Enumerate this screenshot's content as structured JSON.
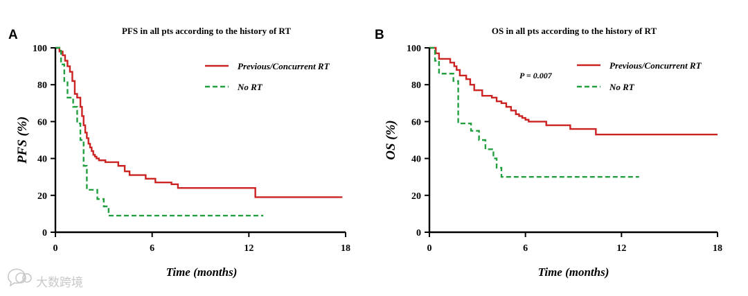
{
  "colors": {
    "rt": "#cc2222",
    "no_rt": "#22a040"
  },
  "watermark": {
    "text": "大数跨境",
    "icon": "wechat-like-icon"
  },
  "chart_data": [
    {
      "type": "line",
      "panel_letter": "A",
      "title": "PFS in all pts according to the history of RT",
      "xlabel": "Time (months)",
      "ylabel": "PFS (%)",
      "xlim": [
        0,
        18
      ],
      "ylim": [
        0,
        100
      ],
      "xticks": [
        0,
        6,
        12,
        18
      ],
      "yticks": [
        0,
        20,
        40,
        60,
        80,
        100
      ],
      "legend": {
        "position": "top-right"
      },
      "p_value": "",
      "series": [
        {
          "name": "Previous/Concurrent RT",
          "style": "solid",
          "color_key": "rt",
          "x": [
            0,
            0.25,
            0.45,
            0.6,
            0.75,
            0.9,
            1.05,
            1.2,
            1.35,
            1.55,
            1.65,
            1.75,
            1.85,
            1.95,
            2.05,
            2.15,
            2.25,
            2.35,
            2.45,
            2.55,
            2.7,
            2.9,
            3.1,
            3.5,
            3.9,
            4.3,
            4.6,
            5.0,
            5.6,
            6.2,
            7.2,
            7.6,
            9.5,
            12.4,
            17.8
          ],
          "y": [
            100,
            98,
            96,
            93,
            90,
            87,
            82,
            75,
            73,
            68,
            63,
            58,
            54,
            51,
            48,
            46,
            44,
            42,
            41,
            40,
            39,
            39,
            38,
            38,
            36,
            33,
            31,
            31,
            29,
            27,
            26,
            24,
            24,
            19,
            19
          ]
        },
        {
          "name": "No RT",
          "style": "dashed",
          "color_key": "no_rt",
          "x": [
            0,
            0.35,
            0.55,
            0.75,
            1.1,
            1.35,
            1.55,
            1.75,
            1.95,
            2.6,
            3.0,
            3.3,
            12.9
          ],
          "y": [
            100,
            91,
            82,
            73,
            68,
            59,
            50,
            36,
            23,
            18,
            14,
            9,
            9
          ]
        }
      ]
    },
    {
      "type": "line",
      "panel_letter": "B",
      "title": "OS in all pts according to the history of RT",
      "xlabel": "Time (months)",
      "ylabel": "OS (%)",
      "xlim": [
        0,
        18
      ],
      "ylim": [
        0,
        100
      ],
      "xticks": [
        0,
        6,
        12,
        18
      ],
      "yticks": [
        0,
        20,
        40,
        60,
        80,
        100
      ],
      "legend": {
        "position": "top-right"
      },
      "p_value": "P = 0.007",
      "series": [
        {
          "name": "Previous/Concurrent RT",
          "style": "solid",
          "color_key": "rt",
          "x": [
            0,
            0.4,
            0.6,
            1.3,
            1.55,
            1.7,
            1.9,
            2.3,
            2.55,
            2.8,
            3.3,
            3.9,
            4.2,
            4.5,
            4.8,
            5.1,
            5.4,
            5.6,
            5.8,
            6.0,
            6.2,
            7.1,
            7.3,
            8.8,
            10.4,
            18
          ],
          "y": [
            100,
            97,
            94,
            92,
            90,
            88,
            85,
            83,
            80,
            77,
            74,
            73,
            71,
            70,
            68,
            66,
            64,
            63,
            62,
            61,
            60,
            60,
            58,
            56,
            53,
            53
          ]
        },
        {
          "name": "No RT",
          "style": "dashed",
          "color_key": "no_rt",
          "x": [
            0,
            0.35,
            0.6,
            1.2,
            1.5,
            1.8,
            2.3,
            2.6,
            3.1,
            3.5,
            4.0,
            4.2,
            4.5,
            13.1
          ],
          "y": [
            100,
            93,
            86,
            86,
            82,
            59,
            59,
            55,
            50,
            45,
            40,
            35,
            30,
            30
          ]
        }
      ]
    }
  ]
}
